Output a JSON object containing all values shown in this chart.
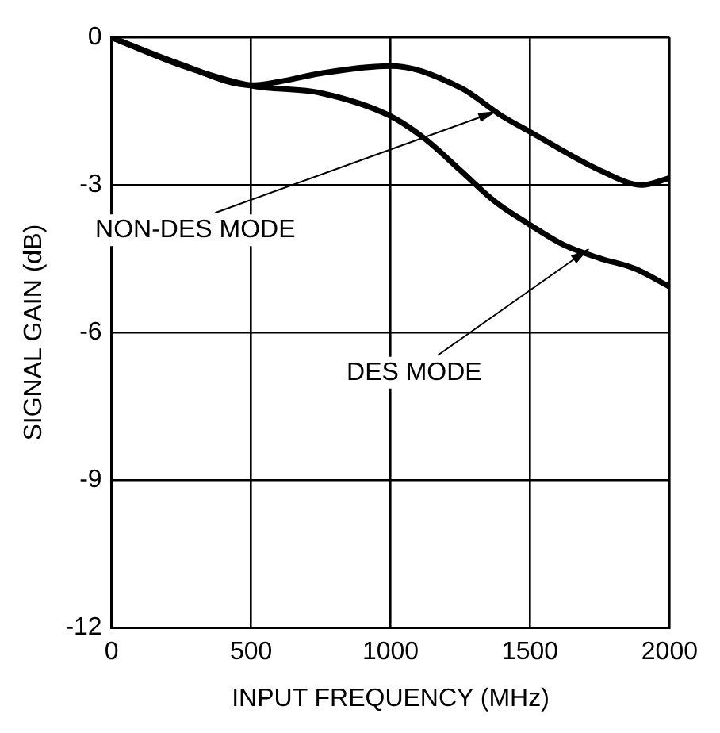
{
  "chart_data": {
    "type": "line",
    "xlabel": "INPUT FREQUENCY (MHz)",
    "ylabel": "SIGNAL GAIN (dB)",
    "x": [
      0,
      250,
      500,
      600,
      750,
      1000,
      1250,
      1400,
      1500,
      1750,
      1900,
      2000
    ],
    "series": [
      {
        "color": "#000000",
        "values": [
          0,
          -0.55,
          -0.97,
          -0.9,
          -0.73,
          -0.58,
          -1.02,
          -1.6,
          -1.92,
          -2.7,
          -3.0,
          -2.86
        ]
      },
      {
        "color": "#000000",
        "x": [
          0,
          250,
          500,
          750,
          1000,
          1125,
          1250,
          1375,
          1500,
          1625,
          1750,
          1875,
          2000
        ],
        "values": [
          0,
          -0.57,
          -0.98,
          -1.13,
          -1.6,
          -2.07,
          -2.7,
          -3.34,
          -3.81,
          -4.23,
          -4.49,
          -4.7,
          -5.07
        ]
      }
    ],
    "xlim": [
      0,
      2000
    ],
    "xticks": [
      0,
      500,
      1000,
      1500,
      2000
    ],
    "ylim": [
      -12,
      0
    ],
    "yticks": [
      -12,
      -9,
      -6,
      -3,
      0
    ],
    "grid": true,
    "legend": false,
    "marker": "none",
    "line_style": "solid",
    "annotations": [
      {
        "text": "NON-DES MODE",
        "x": 1380,
        "y": -1.5
      },
      {
        "text": "DES MODE",
        "x": 1710,
        "y": -4.3
      }
    ]
  }
}
